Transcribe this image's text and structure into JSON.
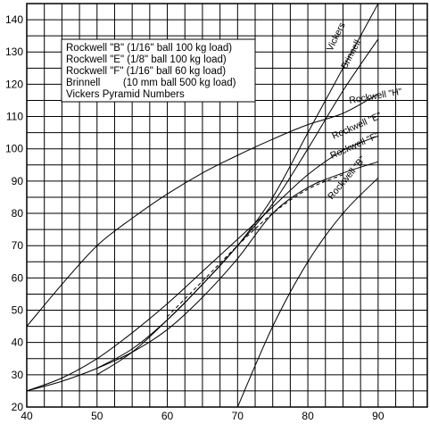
{
  "chart_data": {
    "type": "line",
    "title": "",
    "xlabel": "",
    "ylabel": "",
    "xlim": [
      40,
      97
    ],
    "ylim": [
      20,
      145
    ],
    "grid": true,
    "x_ticks": [
      "40",
      "50",
      "60",
      "70",
      "80",
      "90"
    ],
    "y_ticks": [
      "20",
      "30",
      "40",
      "50",
      "60",
      "70",
      "80",
      "90",
      "100",
      "110",
      "120",
      "130",
      "140"
    ],
    "legend": {
      "placement": "top-left",
      "entries": [
        "Rockwell \"B\" (1/16\" ball 100 kg load)",
        "Rockwell \"E\" (1/8\" ball 100 kg load)",
        "Rockwell \"F\" (1/16\" ball 60 kg load)",
        "Brinnell        (10 mm ball 500 kg load)",
        "Vickers Pyramid Numbers"
      ]
    },
    "series": [
      {
        "name": "Rockwell \"H\"",
        "style": "solid",
        "x": [
          40,
          45,
          50,
          55,
          60,
          65,
          70,
          75,
          80,
          85,
          90
        ],
        "y": [
          45,
          58,
          70,
          78.5,
          86,
          92.5,
          98,
          103,
          107.5,
          111,
          117
        ]
      },
      {
        "name": "Rockwell \"E\"",
        "style": "solid",
        "x": [
          40,
          45,
          50,
          55,
          60,
          65,
          70,
          75,
          80,
          85,
          90
        ],
        "y": [
          25,
          29,
          35,
          43,
          52,
          62,
          72,
          82,
          92,
          99.5,
          104
        ]
      },
      {
        "name": "Rockwell \"F\"",
        "style": "solid",
        "x": [
          40,
          45,
          50,
          55,
          60,
          65,
          70,
          75,
          80,
          85,
          90
        ],
        "y": [
          25,
          28,
          32,
          37,
          44,
          54,
          66,
          80,
          88,
          92.5,
          96
        ]
      },
      {
        "name": "",
        "style": "dashed",
        "x": [
          60,
          65,
          70,
          75,
          80,
          85
        ],
        "y": [
          48,
          59,
          70,
          80,
          87.5,
          92
        ]
      },
      {
        "name": "Rockwell \"B\"",
        "style": "solid",
        "x": [
          70,
          75,
          80,
          85,
          90
        ],
        "y": [
          20,
          45,
          65,
          80,
          91
        ]
      },
      {
        "name": "Vickers",
        "style": "solid",
        "x": [
          50,
          55,
          60,
          65,
          70,
          75,
          80,
          85,
          90
        ],
        "y": [
          30,
          37,
          47,
          58,
          70,
          85,
          105,
          125,
          145
        ]
      },
      {
        "name": "Brinnell",
        "style": "solid",
        "x": [
          50,
          55,
          60,
          65,
          70,
          75,
          80,
          85,
          90
        ],
        "y": [
          32,
          38,
          47,
          58,
          70,
          83,
          100,
          118,
          134
        ]
      }
    ]
  }
}
